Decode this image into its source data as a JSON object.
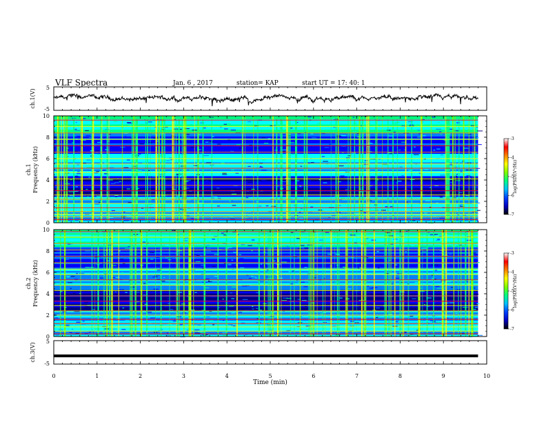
{
  "header": {
    "title": "VLF Spectra",
    "date": "Jan. 6 , 2017",
    "station": "station= KAP",
    "start_ut": "start UT =  17: 40: 1"
  },
  "chart_data": [
    {
      "type": "line",
      "ylabel": "ch.1(V)",
      "ylim": [
        -5,
        5
      ],
      "yticks": [
        "5",
        "-5"
      ],
      "xlim": [
        0,
        10
      ],
      "x_extent": 9.8,
      "description_level": 0,
      "noise_amplitude": 1.0
    },
    {
      "type": "heatmap",
      "ylabel_channel": "ch.1",
      "ylabel": "Frequency (kHz)",
      "ylim": [
        0,
        10
      ],
      "yticks": [
        "0",
        "2",
        "4",
        "6",
        "8",
        "10"
      ],
      "xlim": [
        0,
        10
      ],
      "x_extent": 9.8,
      "bands_khz": [
        0.3,
        0.55,
        0.8,
        1.05,
        1.4,
        1.8,
        2.2,
        2.6,
        3.0,
        3.5,
        4.1,
        4.7,
        5.1,
        5.5,
        6.0,
        6.6,
        7.2,
        7.8,
        8.4,
        9.0,
        9.6
      ],
      "colorbar": {
        "label": "log(PSD)(V²/Hz)",
        "ticks": [
          "-3",
          "-4",
          "-5",
          "-6",
          "-7"
        ],
        "range": [
          -7,
          -3
        ]
      }
    },
    {
      "type": "heatmap",
      "ylabel_channel": "ch.2",
      "ylabel": "Frequency (kHz)",
      "ylim": [
        0,
        10
      ],
      "yticks": [
        "0",
        "2",
        "4",
        "6",
        "8",
        "10"
      ],
      "xlim": [
        0,
        10
      ],
      "x_extent": 9.8,
      "bands_khz": [
        0.25,
        0.5,
        0.9,
        1.2,
        1.6,
        2.0,
        2.4,
        2.9,
        3.3,
        3.8,
        4.3,
        4.8,
        5.3,
        5.8,
        6.3,
        6.9,
        7.5,
        8.1,
        8.7,
        9.3,
        9.8
      ],
      "colorbar": {
        "label": "log(PSD)(V²/Hz)",
        "ticks": [
          "-3",
          "-4",
          "-5",
          "-6",
          "-7"
        ],
        "range": [
          -7,
          -3
        ]
      }
    },
    {
      "type": "line",
      "ylabel": "ch.3(V)",
      "ylim": [
        -5,
        5
      ],
      "yticks": [
        "5",
        "-5"
      ],
      "xlim": [
        0,
        10
      ],
      "x_extent": 9.8,
      "constant_value": -1.5
    }
  ],
  "xaxis": {
    "label": "Time (min)",
    "ticks": [
      "0",
      "1",
      "2",
      "3",
      "4",
      "5",
      "6",
      "7",
      "8",
      "9",
      "10"
    ]
  },
  "colors": {
    "spectrum": [
      "#000080",
      "#0000ff",
      "#0080ff",
      "#00ffff",
      "#00ff80",
      "#80ff00",
      "#ffff00",
      "#ff8000",
      "#ff0000",
      "#ffffff"
    ],
    "trace": "#000000"
  }
}
